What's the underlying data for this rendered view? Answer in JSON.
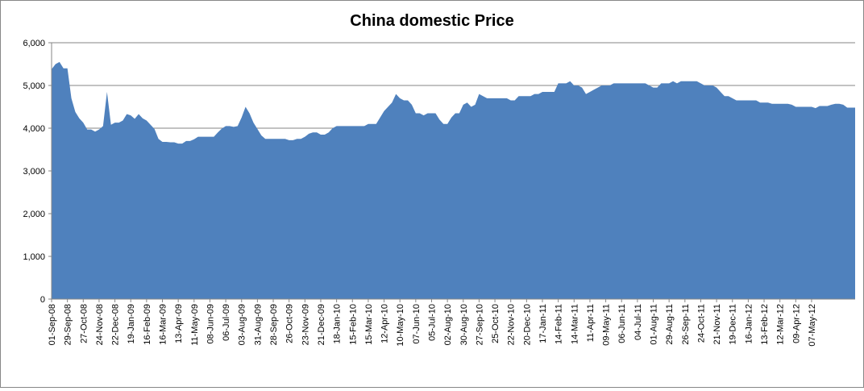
{
  "chart_data": {
    "type": "area",
    "title": "China domestic Price",
    "xlabel": "",
    "ylabel": "",
    "ylim": [
      0,
      6000
    ],
    "yticks": [
      0,
      1000,
      2000,
      3000,
      4000,
      5000,
      6000
    ],
    "ytick_labels": [
      "0",
      "1,000",
      "2,000",
      "3,000",
      "4,000",
      "5,000",
      "6,000"
    ],
    "grid": "horizontal",
    "legend": "none",
    "colors": {
      "area": "#4F81BD",
      "grid": "#868686",
      "axis": "#868686"
    },
    "x_tick_labels": [
      "01-Sep-08",
      "29-Sep-08",
      "27-Oct-08",
      "24-Nov-08",
      "22-Dec-08",
      "19-Jan-09",
      "16-Feb-09",
      "16-Mar-09",
      "13-Apr-09",
      "11-May-09",
      "08-Jun-09",
      "06-Jul-09",
      "03-Aug-09",
      "31-Aug-09",
      "28-Sep-09",
      "26-Oct-09",
      "23-Nov-09",
      "21-Dec-09",
      "18-Jan-10",
      "15-Feb-10",
      "15-Mar-10",
      "12-Apr-10",
      "10-May-10",
      "07-Jun-10",
      "05-Jul-10",
      "02-Aug-10",
      "30-Aug-10",
      "27-Sep-10",
      "25-Oct-10",
      "22-Nov-10",
      "20-Dec-10",
      "17-Jan-11",
      "14-Feb-11",
      "14-Mar-11",
      "11-Apr-11",
      "09-May-11",
      "06-Jun-11",
      "04-Jul-11",
      "01-Aug-11",
      "29-Aug-11",
      "26-Sep-11",
      "24-Oct-11",
      "21-Nov-11",
      "19-Dec-11",
      "16-Jan-12",
      "13-Feb-12",
      "12-Mar-12",
      "09-Apr-12",
      "07-May-12"
    ],
    "series": [
      {
        "values": [
          5380,
          5500,
          5550,
          5400,
          5400,
          4700,
          4380,
          4230,
          4130,
          3970,
          3970,
          3920,
          3970,
          4050,
          4850,
          4080,
          4130,
          4130,
          4180,
          4330,
          4300,
          4220,
          4330,
          4230,
          4180,
          4080,
          3980,
          3750,
          3680,
          3680,
          3670,
          3670,
          3640,
          3640,
          3700,
          3700,
          3740,
          3800,
          3800,
          3800,
          3800,
          3800,
          3900,
          3990,
          4050,
          4050,
          4030,
          4050,
          4250,
          4500,
          4350,
          4130,
          3980,
          3830,
          3750,
          3750,
          3750,
          3750,
          3750,
          3750,
          3720,
          3720,
          3750,
          3750,
          3800,
          3870,
          3900,
          3900,
          3850,
          3850,
          3900,
          4000,
          4050,
          4050,
          4050,
          4050,
          4050,
          4050,
          4050,
          4050,
          4100,
          4100,
          4100,
          4250,
          4400,
          4500,
          4600,
          4800,
          4700,
          4650,
          4650,
          4550,
          4350,
          4350,
          4300,
          4350,
          4350,
          4350,
          4200,
          4100,
          4100,
          4250,
          4350,
          4350,
          4550,
          4600,
          4500,
          4550,
          4800,
          4750,
          4700,
          4700,
          4700,
          4700,
          4700,
          4700,
          4650,
          4650,
          4750,
          4750,
          4750,
          4750,
          4800,
          4800,
          4850,
          4850,
          4850,
          4850,
          5050,
          5050,
          5050,
          5100,
          5000,
          5000,
          4950,
          4800,
          4850,
          4900,
          4950,
          5000,
          5000,
          5000,
          5050,
          5050,
          5050,
          5050,
          5050,
          5050,
          5050,
          5050,
          5050,
          5000,
          4950,
          4950,
          5050,
          5050,
          5050,
          5100,
          5050,
          5100,
          5100,
          5100,
          5100,
          5100,
          5050,
          5000,
          5000,
          5000,
          4950,
          4850,
          4750,
          4750,
          4700,
          4650,
          4650,
          4650,
          4650,
          4650,
          4650,
          4600,
          4600,
          4600,
          4570,
          4570,
          4570,
          4570,
          4570,
          4550,
          4500,
          4500,
          4500,
          4500,
          4500,
          4470,
          4520,
          4520,
          4520,
          4550,
          4570,
          4570,
          4550,
          4480,
          4480,
          4480
        ]
      }
    ]
  }
}
